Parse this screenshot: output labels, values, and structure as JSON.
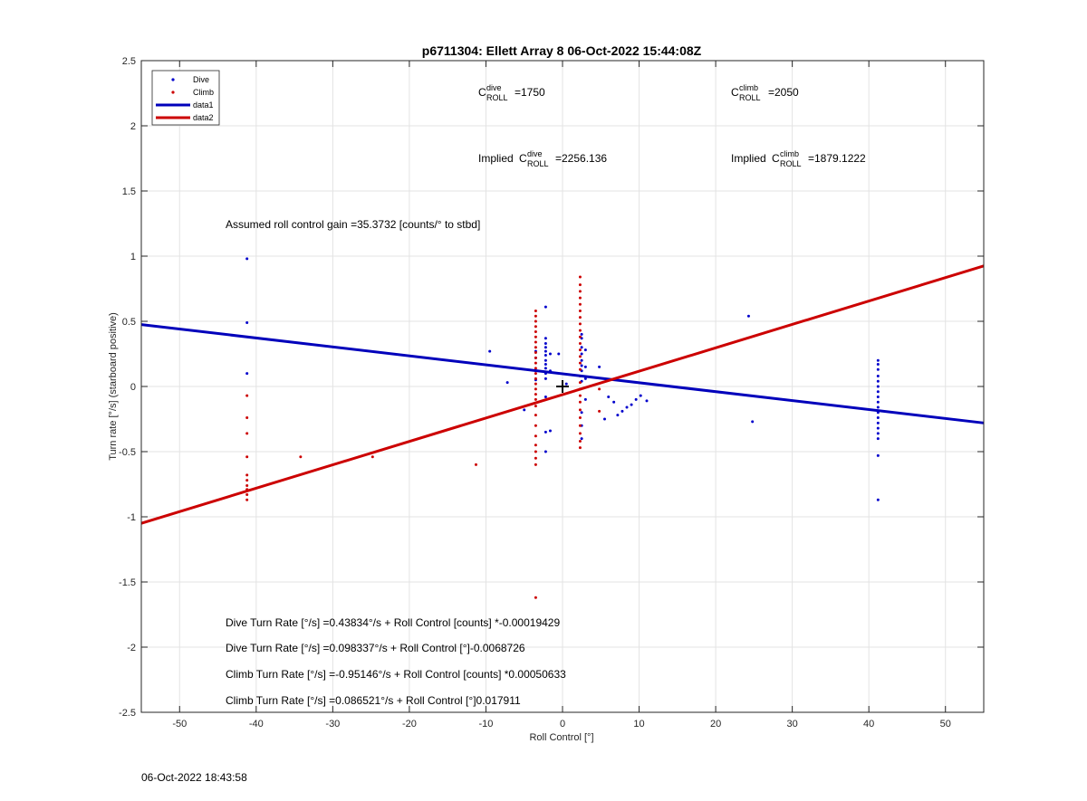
{
  "chart_data": {
    "type": "scatter",
    "title": "p6711304: Ellett Array 8 06-Oct-2022 15:44:08Z",
    "xlabel": "Roll Control [°]",
    "ylabel": "Turn rate [°/s] (starboard positive)",
    "xlim": [
      -55,
      55
    ],
    "ylim": [
      -2.5,
      2.5
    ],
    "xticks": [
      -50,
      -40,
      -30,
      -20,
      -10,
      0,
      10,
      20,
      30,
      40,
      50
    ],
    "yticks": [
      -2.5,
      -2,
      -1.5,
      -1,
      -0.5,
      0,
      0.5,
      1,
      1.5,
      2,
      2.5
    ],
    "grid": true,
    "legend_position": "top-left",
    "legend": [
      {
        "label": "Dive",
        "kind": "marker",
        "color": "#0000cc"
      },
      {
        "label": "Climb",
        "kind": "marker",
        "color": "#cc0000"
      },
      {
        "label": "data1",
        "kind": "line",
        "color": "#0000bb"
      },
      {
        "label": "data2",
        "kind": "line",
        "color": "#cc0000"
      }
    ],
    "series": [
      {
        "name": "Dive",
        "color": "#0000cc",
        "points": [
          [
            -41.2,
            0.98
          ],
          [
            -41.2,
            0.49
          ],
          [
            -41.2,
            0.1
          ],
          [
            -9.5,
            0.27
          ],
          [
            -7.2,
            0.03
          ],
          [
            -5,
            -0.18
          ],
          [
            -3.5,
            0.27
          ],
          [
            -3.5,
            0.22
          ],
          [
            -3.5,
            0.12
          ],
          [
            -3.5,
            0.05
          ],
          [
            -2.2,
            0.61
          ],
          [
            -2.2,
            0.37
          ],
          [
            -2.2,
            0.33
          ],
          [
            -2.2,
            0.3
          ],
          [
            -2.2,
            0.27
          ],
          [
            -2.2,
            0.24
          ],
          [
            -2.2,
            0.2
          ],
          [
            -2.2,
            0.17
          ],
          [
            -2.2,
            0.14
          ],
          [
            -2.2,
            0.1
          ],
          [
            -2.2,
            0.06
          ],
          [
            -2.2,
            -0.08
          ],
          [
            -2.2,
            -0.35
          ],
          [
            -2.2,
            -0.5
          ],
          [
            -1.6,
            -0.34
          ],
          [
            -1.6,
            0.12
          ],
          [
            -1.6,
            0.25
          ],
          [
            -0.5,
            0.25
          ],
          [
            0.5,
            0.02
          ],
          [
            2.5,
            0.4
          ],
          [
            2.5,
            0.37
          ],
          [
            2.5,
            0.3
          ],
          [
            2.5,
            0.25
          ],
          [
            2.5,
            0.2
          ],
          [
            2.5,
            0.16
          ],
          [
            2.5,
            0.12
          ],
          [
            2.5,
            0.08
          ],
          [
            2.5,
            0.04
          ],
          [
            2.5,
            -0.2
          ],
          [
            2.5,
            -0.3
          ],
          [
            2.5,
            -0.4
          ],
          [
            3.0,
            0.28
          ],
          [
            3.0,
            0.15
          ],
          [
            3.0,
            0.06
          ],
          [
            3.0,
            -0.1
          ],
          [
            4.8,
            0.15
          ],
          [
            5.5,
            -0.25
          ],
          [
            6.0,
            -0.08
          ],
          [
            6.7,
            -0.12
          ],
          [
            7.2,
            -0.22
          ],
          [
            7.8,
            -0.19
          ],
          [
            8.4,
            -0.16
          ],
          [
            9.0,
            -0.14
          ],
          [
            9.6,
            -0.1
          ],
          [
            10.2,
            -0.07
          ],
          [
            11.0,
            -0.11
          ],
          [
            24.3,
            0.54
          ],
          [
            24.8,
            -0.27
          ],
          [
            41.2,
            0.2
          ],
          [
            41.2,
            0.17
          ],
          [
            41.2,
            0.13
          ],
          [
            41.2,
            0.08
          ],
          [
            41.2,
            0.04
          ],
          [
            41.2,
            0.0
          ],
          [
            41.2,
            -0.04
          ],
          [
            41.2,
            -0.08
          ],
          [
            41.2,
            -0.12
          ],
          [
            41.2,
            -0.16
          ],
          [
            41.2,
            -0.2
          ],
          [
            41.2,
            -0.24
          ],
          [
            41.2,
            -0.28
          ],
          [
            41.2,
            -0.32
          ],
          [
            41.2,
            -0.36
          ],
          [
            41.2,
            -0.4
          ],
          [
            41.2,
            -0.53
          ],
          [
            41.2,
            -0.87
          ]
        ]
      },
      {
        "name": "Climb",
        "color": "#cc0000",
        "points": [
          [
            -41.2,
            -0.07
          ],
          [
            -41.2,
            -0.24
          ],
          [
            -41.2,
            -0.36
          ],
          [
            -41.2,
            -0.54
          ],
          [
            -41.2,
            -0.68
          ],
          [
            -41.2,
            -0.72
          ],
          [
            -41.2,
            -0.76
          ],
          [
            -41.2,
            -0.79
          ],
          [
            -41.2,
            -0.83
          ],
          [
            -41.2,
            -0.87
          ],
          [
            -34.2,
            -0.54
          ],
          [
            -24.8,
            -0.54
          ],
          [
            -11.3,
            -0.6
          ],
          [
            -3.5,
            0.58
          ],
          [
            -3.5,
            0.54
          ],
          [
            -3.5,
            0.5
          ],
          [
            -3.5,
            0.46
          ],
          [
            -3.5,
            0.42
          ],
          [
            -3.5,
            0.38
          ],
          [
            -3.5,
            0.34
          ],
          [
            -3.5,
            0.3
          ],
          [
            -3.5,
            0.26
          ],
          [
            -3.5,
            0.22
          ],
          [
            -3.5,
            0.18
          ],
          [
            -3.5,
            0.14
          ],
          [
            -3.5,
            0.1
          ],
          [
            -3.5,
            0.06
          ],
          [
            -3.5,
            0.02
          ],
          [
            -3.5,
            -0.02
          ],
          [
            -3.5,
            -0.06
          ],
          [
            -3.5,
            -0.1
          ],
          [
            -3.5,
            -0.15
          ],
          [
            -3.5,
            -0.22
          ],
          [
            -3.5,
            -0.3
          ],
          [
            -3.5,
            -0.38
          ],
          [
            -3.5,
            -0.45
          ],
          [
            -3.5,
            -0.5
          ],
          [
            -3.5,
            -0.55
          ],
          [
            -3.5,
            -0.6
          ],
          [
            -3.5,
            -1.62
          ],
          [
            2.3,
            0.84
          ],
          [
            2.3,
            0.78
          ],
          [
            2.3,
            0.73
          ],
          [
            2.3,
            0.68
          ],
          [
            2.3,
            0.63
          ],
          [
            2.3,
            0.58
          ],
          [
            2.3,
            0.53
          ],
          [
            2.3,
            0.48
          ],
          [
            2.3,
            0.43
          ],
          [
            2.3,
            0.38
          ],
          [
            2.3,
            0.33
          ],
          [
            2.3,
            0.28
          ],
          [
            2.3,
            0.23
          ],
          [
            2.3,
            0.18
          ],
          [
            2.3,
            0.13
          ],
          [
            2.3,
            0.08
          ],
          [
            2.3,
            0.03
          ],
          [
            2.3,
            -0.02
          ],
          [
            2.3,
            -0.07
          ],
          [
            2.3,
            -0.12
          ],
          [
            2.3,
            -0.18
          ],
          [
            2.3,
            -0.24
          ],
          [
            2.3,
            -0.3
          ],
          [
            2.3,
            -0.36
          ],
          [
            2.3,
            -0.42
          ],
          [
            2.3,
            -0.47
          ],
          [
            4.8,
            -0.02
          ],
          [
            4.8,
            -0.19
          ]
        ]
      }
    ],
    "lines": [
      {
        "name": "data1",
        "color": "#0000bb",
        "x": [
          -55,
          55
        ],
        "y": [
          0.475,
          -0.28
        ]
      },
      {
        "name": "data2",
        "color": "#cc0000",
        "x": [
          -55,
          55
        ],
        "y": [
          -1.05,
          0.925
        ]
      }
    ],
    "marker": {
      "symbol": "+",
      "x": 0,
      "y": 0
    },
    "annotations": {
      "c_dive": {
        "c": "C",
        "sup": "dive",
        "sub": "ROLL",
        "value": "=1750"
      },
      "c_climb": {
        "c": "C",
        "sup": "climb",
        "sub": "ROLL",
        "value": "=2050"
      },
      "implied_dive": {
        "prefix": "Implied ",
        "c": "C",
        "sup": "dive",
        "sub": "ROLL",
        "value": "=2256.136"
      },
      "implied_climb": {
        "prefix": "Implied ",
        "c": "C",
        "sup": "climb",
        "sub": "ROLL",
        "value": "=1879.1222"
      },
      "gain": "Assumed roll control gain =35.3732 [counts/° to stbd]",
      "fits": [
        "Dive Turn Rate [°/s] =0.43834°/s + Roll Control [counts] *-0.00019429",
        "Dive Turn Rate [°/s] =0.098337°/s + Roll Control [°]-0.0068726",
        "Climb Turn Rate [°/s] =-0.95146°/s + Roll Control [counts] *0.00050633",
        "Climb Turn Rate [°/s] =0.086521°/s + Roll Control [°]0.017911"
      ]
    }
  },
  "timestamp": "06-Oct-2022 18:43:58"
}
